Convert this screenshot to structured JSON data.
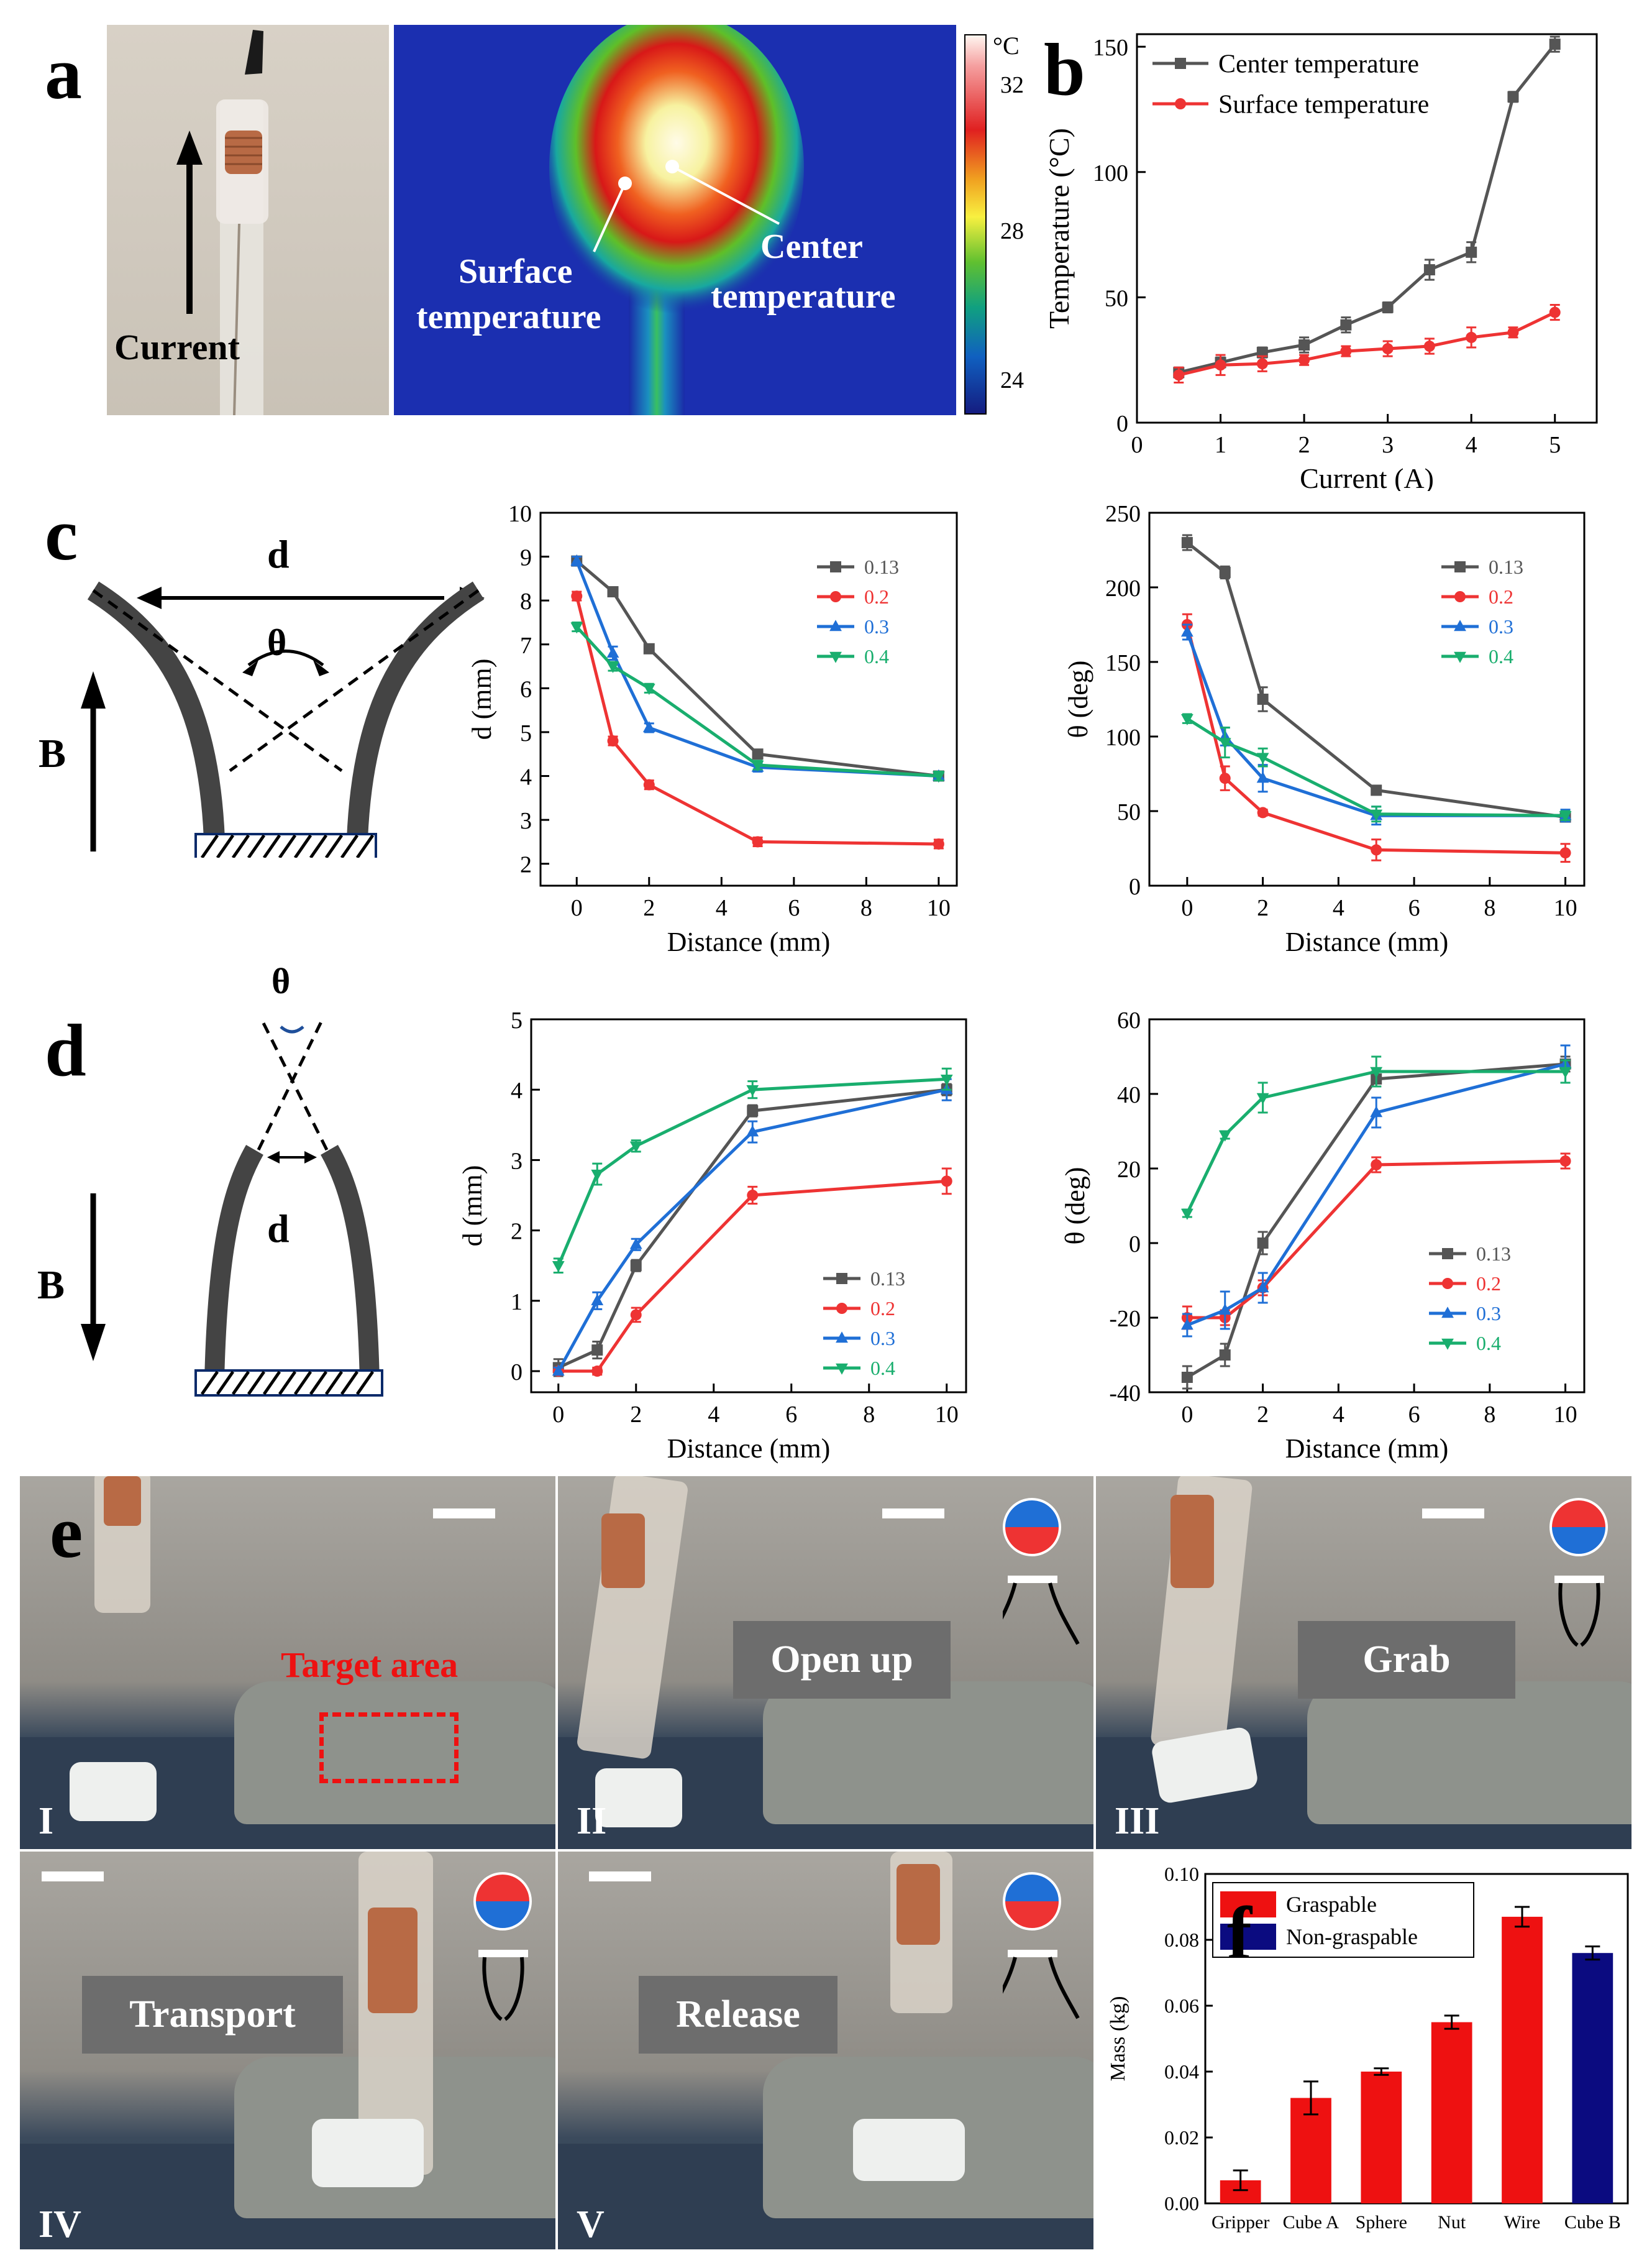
{
  "labels": {
    "a": "a",
    "b": "b",
    "c": "c",
    "d": "d",
    "e": "e",
    "f": "f"
  },
  "panel_a": {
    "current_label": "Current",
    "surface_label_l1": "Surface",
    "surface_label_l2": "temperature",
    "center_label_l1": "Center",
    "center_label_l2": "temperature",
    "colorbar": {
      "unit": "°C",
      "ticks": [
        "32",
        "28",
        "24"
      ]
    }
  },
  "diagram_c": {
    "d": "d",
    "theta": "θ",
    "B": "B"
  },
  "diagram_d": {
    "d": "d",
    "theta": "θ",
    "B": "B"
  },
  "panel_e": {
    "target_area": "Target area",
    "steps": [
      "Open up",
      "Grab",
      "Transport",
      "Release"
    ],
    "roman": [
      "I",
      "II",
      "III",
      "IV",
      "V"
    ]
  },
  "colors": {
    "grey": "#555555",
    "red": "#ee3333",
    "blue": "#1f6fd6",
    "green": "#19ae6e",
    "bar_red": "#ee1111",
    "bar_navy": "#0b0b80"
  },
  "chart_data": [
    {
      "id": "b",
      "type": "line",
      "xlabel": "Current (A)",
      "ylabel": "Temperature (°C)",
      "xlim": [
        0,
        5.5
      ],
      "ylim": [
        0,
        155
      ],
      "xticks": [
        0,
        1,
        2,
        3,
        4,
        5
      ],
      "yticks": [
        0,
        50,
        100,
        150
      ],
      "legend": "top-left",
      "series": [
        {
          "name": "Center temperature",
          "marker": "square",
          "color": "#555555",
          "x": [
            0.5,
            1,
            1.5,
            2,
            2.5,
            3,
            3.5,
            4,
            4.5,
            5
          ],
          "y": [
            20,
            24,
            28,
            31,
            39,
            46,
            61,
            68,
            130,
            151
          ],
          "err": [
            2,
            2,
            2,
            3,
            3,
            2,
            4,
            4,
            2,
            3
          ]
        },
        {
          "name": "Surface temperature",
          "marker": "circle",
          "color": "#ee3333",
          "x": [
            0.5,
            1,
            1.5,
            2,
            2.5,
            3,
            3.5,
            4,
            4.5,
            5
          ],
          "y": [
            19,
            23,
            23.5,
            25,
            28.5,
            29.5,
            30.5,
            34,
            36,
            44
          ],
          "err": [
            3,
            4,
            3,
            2,
            2,
            3,
            3,
            4,
            2,
            3
          ]
        }
      ]
    },
    {
      "id": "c1",
      "type": "line",
      "xlabel": "Distance (mm)",
      "ylabel": "d (mm)",
      "xlim": [
        -1,
        10.5
      ],
      "ylim": [
        1.5,
        10
      ],
      "xticks": [
        0,
        2,
        4,
        6,
        8,
        10
      ],
      "yticks": [
        2,
        3,
        4,
        5,
        6,
        7,
        8,
        9,
        10
      ],
      "legend": "top-right",
      "series": [
        {
          "name": "0.13",
          "marker": "square",
          "color": "#555555",
          "x": [
            0,
            1,
            2,
            5,
            10
          ],
          "y": [
            8.9,
            8.2,
            6.9,
            4.5,
            4.0
          ],
          "err": [
            0.1,
            0.1,
            0.1,
            0.1,
            0.1
          ]
        },
        {
          "name": "0.2",
          "marker": "circle",
          "color": "#ee3333",
          "x": [
            0,
            1,
            2,
            5,
            10
          ],
          "y": [
            8.1,
            4.8,
            3.8,
            2.5,
            2.45
          ],
          "err": [
            0.1,
            0.1,
            0.1,
            0.1,
            0.1
          ]
        },
        {
          "name": "0.3",
          "marker": "triangle-up",
          "color": "#1f6fd6",
          "x": [
            0,
            1,
            2,
            5,
            10
          ],
          "y": [
            8.9,
            6.8,
            5.1,
            4.2,
            4.0
          ],
          "err": [
            0.1,
            0.15,
            0.1,
            0.1,
            0.1
          ]
        },
        {
          "name": "0.4",
          "marker": "triangle-down",
          "color": "#19ae6e",
          "x": [
            0,
            1,
            2,
            5,
            10
          ],
          "y": [
            7.4,
            6.5,
            6.0,
            4.25,
            4.0
          ],
          "err": [
            0.1,
            0.1,
            0.1,
            0.1,
            0.1
          ]
        }
      ]
    },
    {
      "id": "c2",
      "type": "line",
      "xlabel": "Distance (mm)",
      "ylabel": "θ (deg)",
      "xlim": [
        -1,
        10.5
      ],
      "ylim": [
        0,
        250
      ],
      "xticks": [
        0,
        2,
        4,
        6,
        8,
        10
      ],
      "yticks": [
        0,
        50,
        100,
        150,
        200,
        250
      ],
      "legend": "top-right",
      "series": [
        {
          "name": "0.13",
          "marker": "square",
          "color": "#555555",
          "x": [
            0,
            1,
            2,
            5,
            10
          ],
          "y": [
            230,
            210,
            125,
            64,
            46
          ],
          "err": [
            5,
            4,
            8,
            3,
            3
          ]
        },
        {
          "name": "0.2",
          "marker": "circle",
          "color": "#ee3333",
          "x": [
            0,
            1,
            2,
            5,
            10
          ],
          "y": [
            175,
            72,
            49,
            24,
            22
          ],
          "err": [
            7,
            8,
            2,
            7,
            6
          ]
        },
        {
          "name": "0.3",
          "marker": "triangle-up",
          "color": "#1f6fd6",
          "x": [
            0,
            1,
            2,
            5,
            10
          ],
          "y": [
            170,
            100,
            72,
            47,
            47
          ],
          "err": [
            5,
            6,
            9,
            6,
            4
          ]
        },
        {
          "name": "0.4",
          "marker": "triangle-down",
          "color": "#19ae6e",
          "x": [
            0,
            1,
            2,
            5,
            10
          ],
          "y": [
            112,
            96,
            86,
            48,
            47
          ],
          "err": [
            3,
            10,
            6,
            5,
            3
          ]
        }
      ]
    },
    {
      "id": "d1",
      "type": "line",
      "xlabel": "Distance (mm)",
      "ylabel": "d (mm)",
      "xlim": [
        -0.7,
        10.5
      ],
      "ylim": [
        -0.3,
        5
      ],
      "xticks": [
        0,
        2,
        4,
        6,
        8,
        10
      ],
      "yticks": [
        0,
        1,
        2,
        3,
        4,
        5
      ],
      "legend": "bottom-right",
      "series": [
        {
          "name": "0.13",
          "marker": "square",
          "color": "#555555",
          "x": [
            0,
            1,
            2,
            5,
            10
          ],
          "y": [
            0.05,
            0.3,
            1.5,
            3.7,
            4.0
          ],
          "err": [
            0.12,
            0.12,
            0.08,
            0.08,
            0.08
          ]
        },
        {
          "name": "0.2",
          "marker": "circle",
          "color": "#ee3333",
          "x": [
            0,
            1,
            2,
            5,
            10
          ],
          "y": [
            0.0,
            0.0,
            0.8,
            2.5,
            2.7
          ],
          "err": [
            0.05,
            0.05,
            0.1,
            0.12,
            0.18
          ]
        },
        {
          "name": "0.3",
          "marker": "triangle-up",
          "color": "#1f6fd6",
          "x": [
            0,
            1,
            2,
            5,
            10
          ],
          "y": [
            0.0,
            1.0,
            1.8,
            3.4,
            4.0
          ],
          "err": [
            0.05,
            0.12,
            0.08,
            0.15,
            0.15
          ]
        },
        {
          "name": "0.4",
          "marker": "triangle-down",
          "color": "#19ae6e",
          "x": [
            0,
            1,
            2,
            5,
            10
          ],
          "y": [
            1.5,
            2.8,
            3.2,
            4.0,
            4.15
          ],
          "err": [
            0.1,
            0.15,
            0.08,
            0.12,
            0.15
          ]
        }
      ]
    },
    {
      "id": "d2",
      "type": "line",
      "xlabel": "Distance (mm)",
      "ylabel": "θ (deg)",
      "xlim": [
        -1,
        10.5
      ],
      "ylim": [
        -40,
        60
      ],
      "xticks": [
        0,
        2,
        4,
        6,
        8,
        10
      ],
      "yticks": [
        -40,
        -20,
        0,
        20,
        40,
        60
      ],
      "legend": "bottom-right",
      "series": [
        {
          "name": "0.13",
          "marker": "square",
          "color": "#555555",
          "x": [
            0,
            1,
            2,
            5,
            10
          ],
          "y": [
            -36,
            -30,
            0,
            44,
            48
          ],
          "err": [
            3,
            3,
            3,
            2,
            2
          ]
        },
        {
          "name": "0.2",
          "marker": "circle",
          "color": "#ee3333",
          "x": [
            0,
            1,
            2,
            5,
            10
          ],
          "y": [
            -20,
            -20,
            -12,
            21,
            22
          ],
          "err": [
            3,
            2,
            2,
            2,
            2
          ]
        },
        {
          "name": "0.3",
          "marker": "triangle-up",
          "color": "#1f6fd6",
          "x": [
            0,
            1,
            2,
            5,
            10
          ],
          "y": [
            -22,
            -18,
            -12,
            35,
            48
          ],
          "err": [
            3,
            5,
            4,
            4,
            5
          ]
        },
        {
          "name": "0.4",
          "marker": "triangle-down",
          "color": "#19ae6e",
          "x": [
            0,
            1,
            2,
            5,
            10
          ],
          "y": [
            8,
            29,
            39,
            46,
            46
          ],
          "err": [
            1,
            1,
            4,
            4,
            3
          ]
        }
      ]
    },
    {
      "id": "f",
      "type": "bar",
      "xlabel": "",
      "ylabel": "Mass (kg)",
      "ylim": [
        0,
        0.1
      ],
      "yticks": [
        0.0,
        0.02,
        0.04,
        0.06,
        0.08,
        0.1
      ],
      "ytick_labels": [
        "0.00",
        "0.02",
        "0.04",
        "0.06",
        "0.08",
        "0.10"
      ],
      "legend": "top-left",
      "legend_entries": [
        {
          "name": "Graspable",
          "color": "#ee1111"
        },
        {
          "name": "Non-graspable",
          "color": "#0b0b80"
        }
      ],
      "categories": [
        "Gripper",
        "Cube A",
        "Sphere",
        "Nut",
        "Wire",
        "Cube B"
      ],
      "values": [
        0.007,
        0.032,
        0.04,
        0.055,
        0.087,
        0.076
      ],
      "err": [
        0.003,
        0.005,
        0.001,
        0.002,
        0.003,
        0.002
      ],
      "groups": [
        "Graspable",
        "Graspable",
        "Graspable",
        "Graspable",
        "Graspable",
        "Non-graspable"
      ]
    }
  ]
}
